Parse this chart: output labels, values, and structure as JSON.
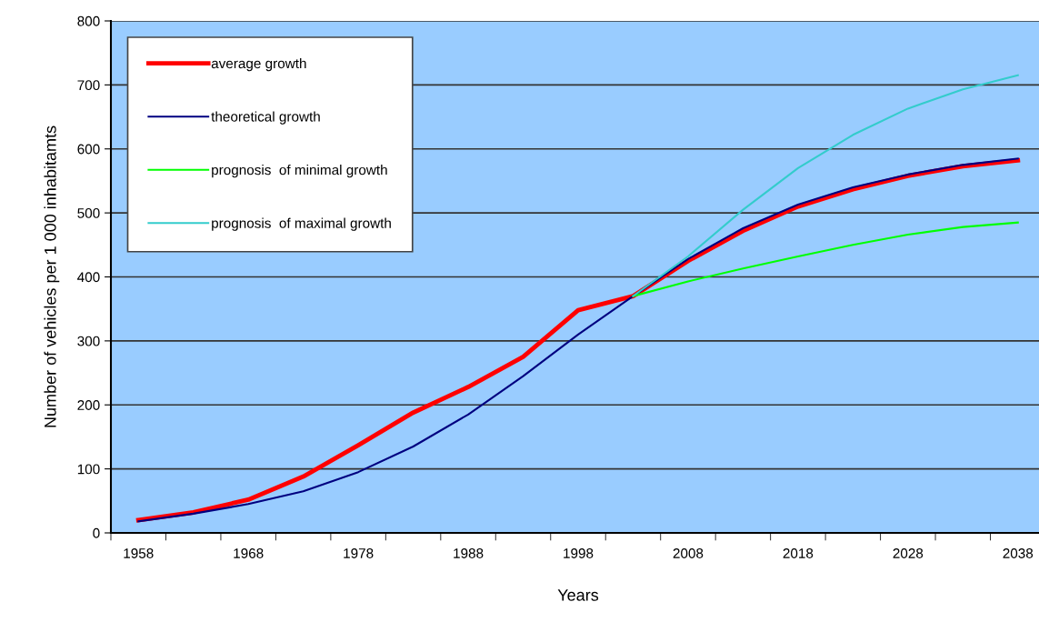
{
  "chart_data": {
    "type": "line",
    "xlabel": "Years",
    "ylabel": "Number of vehicles per 1 000 inhabitamts",
    "categories": [
      "1958",
      null,
      "1968",
      null,
      "1978",
      null,
      "1988",
      null,
      "1998",
      null,
      "2008",
      null,
      "2018",
      null,
      "2028",
      null,
      "2038"
    ],
    "series": [
      {
        "name": "average growth",
        "color": "#ff0000",
        "values": [
          20,
          32,
          52,
          88,
          137,
          188,
          228,
          275,
          348,
          370,
          425,
          472,
          510,
          537,
          558,
          573,
          582
        ]
      },
      {
        "name": "theoretical growth",
        "color": "#000080",
        "values": [
          18,
          30,
          45,
          65,
          95,
          135,
          185,
          245,
          310,
          370,
          428,
          476,
          513,
          540,
          560,
          575,
          585
        ]
      },
      {
        "name": "prognosis  of minimal growth",
        "color": "#00ff00",
        "values": [
          null,
          null,
          null,
          null,
          null,
          null,
          null,
          null,
          null,
          370,
          393,
          413,
          432,
          450,
          466,
          478,
          485
        ]
      },
      {
        "name": "prognosis  of maximal growth",
        "color": "#33cccc",
        "values": [
          null,
          null,
          null,
          null,
          null,
          null,
          null,
          null,
          null,
          370,
          432,
          505,
          570,
          622,
          663,
          693,
          715
        ]
      }
    ],
    "ylim": [
      0,
      800
    ],
    "yticks": [
      0,
      100,
      200,
      300,
      400,
      500,
      600,
      700,
      800
    ],
    "grid": "y",
    "legend": "top left"
  }
}
